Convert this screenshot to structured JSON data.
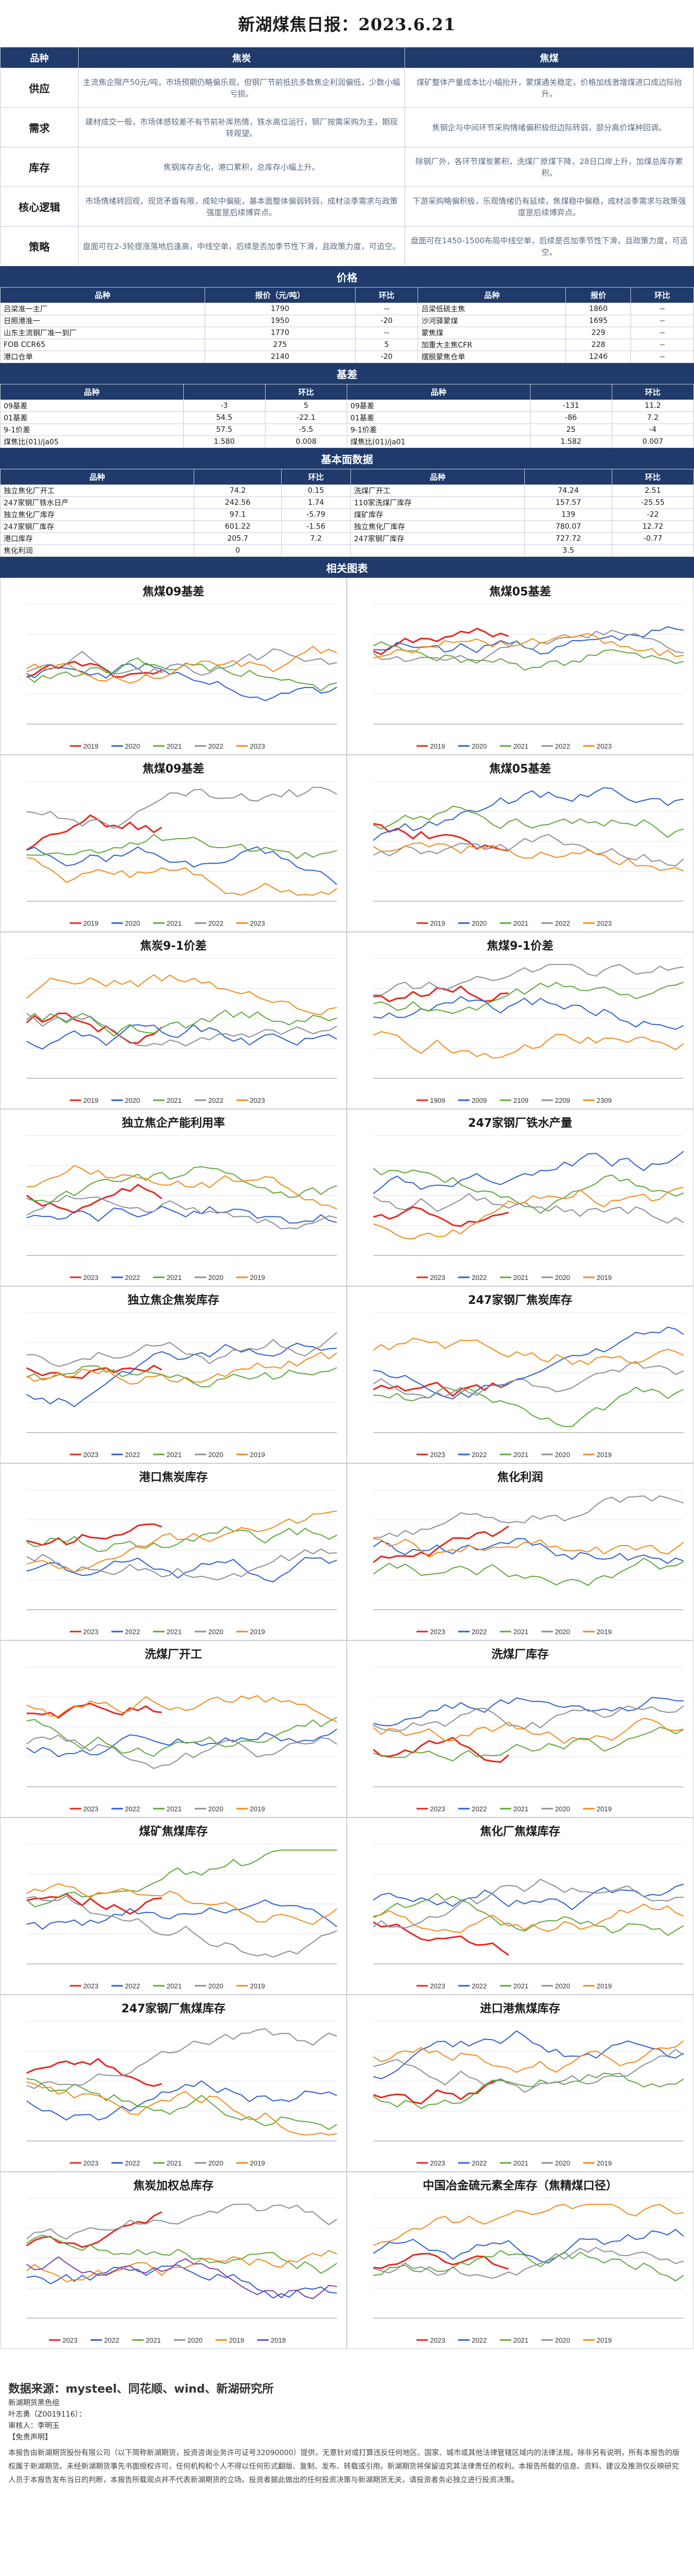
{
  "title": "新湖煤焦日报：2023.6.21",
  "qual": {
    "header": [
      "品种",
      "焦炭",
      "焦煤"
    ],
    "rows": [
      {
        "cat": "供应",
        "coke": "主流焦企限产50元/吨，市场预期仍略偏乐观，但钢厂节前抵抗多数焦企利润偏低，少数小幅亏损。",
        "coal": "煤矿整体产量成本比小幅抬升，蒙煤通关稳定，价格加线激增煤进口成边际抬升。"
      },
      {
        "cat": "需求",
        "coke": "建材成交一般，市场体感较差不有节前补库热情，铁水高位运行，钢厂按需采购为主，期现转观望。",
        "coal": "焦钢企与中间环节采购情绪偏积极但边际转弱，部分高价煤种回调。"
      },
      {
        "cat": "库存",
        "coke": "焦钢库存去化，港口累积，总库存小幅上升。",
        "coal": "除钢厂外，各环节煤炭累积，洗煤厂原煤下降，28日口岸上升，加煤总库存累积。"
      },
      {
        "cat": "核心逻辑",
        "coke": "市场情绪转回观，现货矛盾有限，成轮中偏能，基本面整体偏弱转弱，成材淡季需求与政策强度是后续博弈点。",
        "coal": "下游采购略偏积极，乐观情绪仍有延续，焦煤稳中偏稳，成材淡季需求与政策强度是后续博弈点。"
      },
      {
        "cat": "策略",
        "coke": "盘面可在2-3轮提涨落地后逢高，中线空单，后续是否加季节性下滑，且政策力度，可追空。",
        "coal": "盘面可在1450-1500布局中线空单，后续是否加季节性下滑，且政策力度，可追空。"
      }
    ]
  },
  "price": {
    "band": "价格",
    "header": [
      "品种",
      "报价（元/吨）",
      "环比",
      "品种",
      "报价",
      "环比"
    ],
    "rows": [
      [
        "吕梁准一主厂",
        "1790",
        "--",
        "吕梁低硫主焦",
        "1860",
        "--"
      ],
      [
        "日照港准一",
        "1950",
        "-20",
        "沙河驿蒙煤",
        "1695",
        "--"
      ],
      [
        "山东主流钢厂准一到厂",
        "1770",
        "--",
        "蒙焦煤",
        "229",
        "--"
      ],
      [
        "FOB CCR65",
        "275",
        "5",
        "加重大主焦CFR",
        "228",
        "--"
      ],
      [
        "港口仓单",
        "2140",
        "-20",
        "摆脱蒙焦仓单",
        "1246",
        "--"
      ]
    ]
  },
  "basis": {
    "band": "基差",
    "header": [
      "品种",
      "",
      "环比",
      "品种",
      "",
      "环比"
    ],
    "rows": [
      [
        "09基差",
        "-3",
        "5",
        "09基差",
        "-131",
        "11.2"
      ],
      [
        "01基差",
        "54.5",
        "-22.1",
        "01基差",
        "-86",
        "7.2"
      ],
      [
        "9-1价差",
        "57.5",
        "-5.5",
        "9-1价差",
        "25",
        "-4"
      ],
      [
        "煤焦比(01)/ja05",
        "1.580",
        "0.008",
        "煤焦比(01)/ja01",
        "1.582",
        "0.007"
      ]
    ]
  },
  "fund": {
    "band": "基本面数据",
    "header": [
      "品种",
      "",
      "环比",
      "品种",
      "",
      "环比"
    ],
    "rows": [
      [
        "独立焦化厂开工",
        "74.2",
        "0.15",
        "洗煤厂开工",
        "74.24",
        "2.51"
      ],
      [
        "247家钢厂铁水日产",
        "242.56",
        "1.74",
        "110家洗煤厂库存",
        "157.57",
        "-25.55"
      ],
      [
        "独立焦化厂库存",
        "97.1",
        "-5.79",
        "煤矿库存",
        "139",
        "-22"
      ],
      [
        "247家钢厂库存",
        "601.22",
        "-1.56",
        "独立焦化厂库存",
        "780.07",
        "12.72"
      ],
      [
        "港口库存",
        "205.7",
        "7.2",
        "247家钢厂库存",
        "727.72",
        "-0.77"
      ],
      [
        "焦化利润",
        "0",
        "",
        "",
        "3.5",
        ""
      ]
    ]
  },
  "charts_band": "相关图表",
  "charts": [
    {
      "title": "焦煤09基差",
      "legend": [
        "2019",
        "2020",
        "2021",
        "2022",
        "2023"
      ]
    },
    {
      "title": "焦煤05基差",
      "legend": [
        "2019",
        "2020",
        "2021",
        "2022",
        "2023"
      ]
    },
    {
      "title": "焦煤09基差",
      "legend": [
        "2019",
        "2020",
        "2021",
        "2022",
        "2023"
      ]
    },
    {
      "title": "焦煤05基差",
      "legend": [
        "2019",
        "2020",
        "2021",
        "2022",
        "2023"
      ]
    },
    {
      "title": "焦炭9-1价差",
      "legend": [
        "2019",
        "2020",
        "2021",
        "2022",
        "2023"
      ]
    },
    {
      "title": "焦煤9-1价差",
      "legend": [
        "1909",
        "2009",
        "2109",
        "2209",
        "2309"
      ]
    },
    {
      "title": "独立焦企产能利用率",
      "legend": [
        "2023",
        "2022",
        "2021",
        "2020",
        "2019"
      ]
    },
    {
      "title": "247家钢厂铁水产量",
      "legend": [
        "2023",
        "2022",
        "2021",
        "2020",
        "2019"
      ]
    },
    {
      "title": "独立焦企焦炭库存",
      "legend": [
        "2023",
        "2022",
        "2021",
        "2020",
        "2019"
      ]
    },
    {
      "title": "247家钢厂焦炭库存",
      "legend": [
        "2023",
        "2022",
        "2021",
        "2020",
        "2019"
      ]
    },
    {
      "title": "港口焦炭库存",
      "legend": [
        "2023",
        "2022",
        "2021",
        "2020",
        "2019"
      ]
    },
    {
      "title": "焦化利润",
      "legend": [
        "2023",
        "2022",
        "2021",
        "2020",
        "2019"
      ]
    },
    {
      "title": "洗煤厂开工",
      "legend": [
        "2023",
        "2022",
        "2021",
        "2020",
        "2019"
      ]
    },
    {
      "title": "洗煤厂库存",
      "legend": [
        "2023",
        "2022",
        "2021",
        "2020",
        "2019"
      ]
    },
    {
      "title": "煤矿焦煤库存",
      "legend": [
        "2023",
        "2022",
        "2021",
        "2020",
        "2019"
      ]
    },
    {
      "title": "焦化厂焦煤库存",
      "legend": [
        "2023",
        "2022",
        "2021",
        "2020",
        "2019"
      ]
    },
    {
      "title": "247家钢厂焦煤库存",
      "legend": [
        "2023",
        "2022",
        "2021",
        "2020",
        "2019"
      ]
    },
    {
      "title": "进口港焦煤库存",
      "legend": [
        "2023",
        "2022",
        "2021",
        "2020",
        "2019"
      ]
    },
    {
      "title": "焦炭加权总库存",
      "legend": [
        "2023",
        "2022",
        "2021",
        "2020",
        "2019",
        "2018"
      ]
    },
    {
      "title": "中国冶金硫元素全库存（焦精煤口径）",
      "legend": [
        "2023",
        "2022",
        "2021",
        "2020",
        "2019"
      ]
    }
  ],
  "colors": {
    "band": "#1f3a6b",
    "series": [
      "#e8261d",
      "#2e5fd1",
      "#5fa83a",
      "#8a8f98",
      "#f28a1c",
      "#7b3fb0"
    ]
  },
  "footer": {
    "source": "数据来源：mysteel、同花顺、wind、新湖研究所",
    "lines": [
      "新湖期货黑色组",
      "叶志勇（Z0019116）：",
      "审核人：李明玉",
      "【免责声明】"
    ],
    "disclaimer": "本报告由新湖期货股份有限公司（以下简称新湖期货，投资咨询业务许可证号32090000）提供，无意针对或打算违反任何地区、国家、城市或其他法律管辖区域内的法律法规。除非另有说明，所有本报告的版权属于新湖期货。未经新湖期货事先书面授权许可，任何机构和个人不得以任何形式翻版、复制、发布、转载或引用。新湖期货将保留追究其法律责任的权利。本报告所载的信息、资料、建议及推测仅反映研究人员于本报告发布当日的判断，本报告所载观点并不代表新湖期货的立场。投资者据此做出的任何投资决策与新湖期货无关，请投资者务必独立进行投资决策。"
  }
}
